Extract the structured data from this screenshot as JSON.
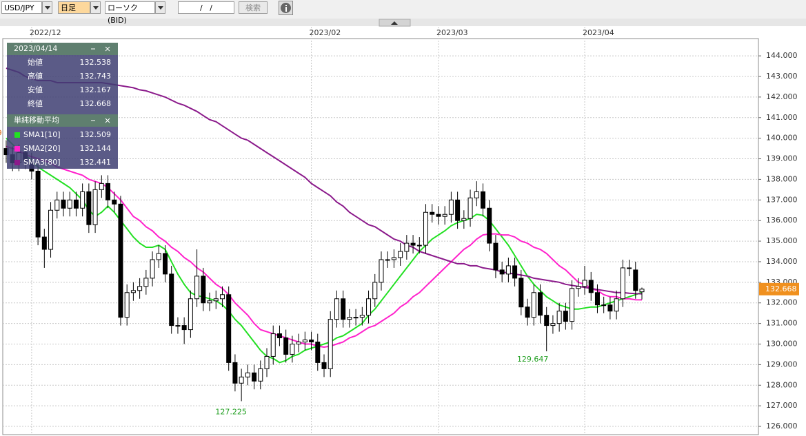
{
  "toolbar": {
    "pair": "USD/JPY",
    "period": "日足",
    "chart_kind": "ローソク(BID)",
    "date_field": "/   /",
    "search": "検索"
  },
  "chart_data": {
    "type": "candlestick",
    "categories": [
      null,
      null,
      null,
      null,
      "2022/12",
      null,
      null,
      null,
      null,
      null,
      null,
      null,
      null,
      null,
      null,
      null,
      null,
      null,
      null,
      null,
      null,
      null,
      null,
      null,
      null,
      null,
      null,
      null,
      null,
      null,
      null,
      null,
      null,
      null,
      null,
      null,
      null,
      null,
      null,
      null,
      null,
      null,
      null,
      null,
      null,
      null,
      null,
      null,
      "2023/02",
      null,
      null,
      null,
      null,
      null,
      null,
      null,
      null,
      null,
      null,
      null,
      null,
      null,
      null,
      null,
      null,
      null,
      null,
      null,
      "2023/03",
      null,
      null,
      null,
      null,
      null,
      null,
      null,
      null,
      null,
      null,
      null,
      null,
      null,
      null,
      null,
      null,
      null,
      null,
      null,
      null,
      null,
      null,
      "2023/04",
      null,
      null,
      null,
      null,
      null,
      null,
      null,
      null,
      null
    ],
    "open": [
      139.5,
      139.2,
      138.8,
      139.3,
      138.9,
      138.4,
      135.2,
      134.6,
      136.5,
      137.0,
      136.6,
      137.0,
      136.6,
      137.4,
      135.8,
      137.5,
      137.8,
      137.0,
      136.8,
      131.3,
      132.5,
      132.6,
      132.8,
      133.2,
      134.1,
      134.4,
      133.4,
      130.9,
      130.9,
      130.7,
      132.2,
      133.3,
      132.0,
      132.1,
      132.2,
      132.4,
      129.1,
      128.1,
      128.4,
      128.6,
      128.2,
      128.8,
      129.4,
      130.5,
      130.3,
      129.5,
      130.0,
      130.1,
      130.2,
      130.1,
      129.1,
      128.8,
      131.2,
      132.2,
      131.2,
      131.3,
      131.3,
      131.4,
      132.2,
      133.0,
      134.1,
      134.1,
      134.2,
      134.5,
      134.9,
      134.8,
      134.8,
      136.4,
      136.3,
      136.2,
      136.3,
      137.0,
      136.0,
      136.1,
      137.1,
      137.4,
      136.6,
      134.9,
      133.6,
      133.4,
      133.8,
      133.2,
      131.8,
      131.3,
      132.5,
      131.4,
      130.9,
      131.0,
      131.6,
      131.1,
      132.7,
      132.8,
      133.1,
      132.5,
      131.9,
      131.9,
      131.6,
      132.2,
      133.7,
      133.6,
      132.538
    ],
    "high": [
      139.9,
      139.6,
      139.7,
      139.7,
      139.3,
      138.8,
      135.6,
      136.9,
      137.4,
      137.4,
      137.4,
      137.4,
      137.8,
      137.8,
      137.9,
      138.2,
      138.2,
      137.4,
      137.2,
      132.9,
      133.0,
      133.2,
      133.6,
      134.5,
      134.8,
      134.8,
      133.8,
      131.3,
      131.3,
      132.6,
      134.6,
      133.7,
      132.5,
      132.6,
      132.8,
      132.8,
      129.5,
      128.8,
      129.0,
      129.0,
      129.2,
      129.8,
      130.9,
      130.9,
      130.7,
      130.4,
      130.5,
      130.6,
      130.6,
      130.5,
      129.5,
      131.6,
      132.6,
      132.6,
      131.7,
      131.7,
      131.8,
      132.6,
      133.4,
      134.5,
      134.5,
      134.6,
      134.9,
      135.3,
      135.3,
      135.2,
      136.8,
      136.8,
      136.7,
      136.7,
      137.4,
      137.4,
      136.5,
      137.5,
      137.909,
      137.8,
      137.0,
      135.3,
      134.0,
      134.2,
      134.2,
      133.6,
      132.2,
      132.9,
      132.9,
      131.8,
      131.4,
      132.0,
      132.0,
      133.1,
      133.2,
      133.8,
      133.5,
      132.9,
      132.3,
      132.3,
      132.6,
      134.1,
      134.1,
      134.0,
      132.743
    ],
    "low": [
      138.8,
      138.4,
      138.4,
      138.5,
      138.0,
      134.8,
      133.7,
      134.2,
      136.1,
      136.2,
      136.2,
      136.2,
      136.2,
      135.4,
      135.4,
      137.1,
      136.6,
      136.4,
      130.9,
      130.9,
      132.1,
      132.2,
      132.4,
      132.8,
      133.7,
      133.0,
      130.5,
      130.5,
      130.0,
      130.3,
      131.8,
      131.6,
      131.6,
      131.7,
      131.8,
      128.7,
      127.7,
      127.225,
      128.0,
      127.8,
      127.8,
      128.4,
      129.0,
      129.9,
      129.1,
      129.1,
      129.6,
      129.7,
      129.7,
      128.7,
      128.4,
      128.4,
      130.8,
      130.8,
      130.8,
      130.9,
      130.9,
      131.0,
      131.8,
      132.6,
      133.7,
      133.7,
      133.8,
      134.1,
      134.4,
      134.4,
      134.4,
      135.9,
      135.8,
      135.8,
      135.9,
      135.6,
      135.6,
      135.7,
      136.7,
      136.2,
      134.5,
      133.2,
      133.0,
      133.0,
      132.8,
      131.4,
      130.9,
      130.9,
      131.0,
      129.647,
      130.5,
      130.6,
      130.7,
      130.7,
      132.3,
      132.4,
      132.1,
      131.5,
      131.5,
      131.2,
      131.2,
      131.8,
      133.3,
      132.2,
      132.167
    ],
    "close": [
      139.2,
      138.8,
      139.3,
      138.9,
      138.4,
      135.2,
      134.6,
      136.5,
      137.0,
      136.6,
      137.0,
      136.6,
      137.4,
      135.8,
      137.5,
      137.8,
      137.0,
      136.8,
      131.3,
      132.5,
      132.6,
      132.8,
      133.2,
      134.1,
      134.4,
      133.4,
      130.9,
      130.9,
      130.7,
      132.2,
      133.3,
      132.0,
      132.1,
      132.2,
      132.4,
      129.1,
      128.1,
      128.4,
      128.6,
      128.2,
      128.8,
      129.4,
      130.5,
      130.3,
      129.5,
      130.0,
      130.1,
      130.2,
      130.1,
      129.1,
      128.8,
      131.2,
      132.2,
      131.2,
      131.3,
      131.3,
      131.4,
      132.2,
      133.0,
      134.1,
      134.1,
      134.2,
      134.5,
      134.9,
      134.8,
      134.8,
      136.4,
      136.3,
      136.2,
      136.3,
      137.0,
      136.0,
      136.1,
      137.1,
      137.4,
      136.6,
      134.9,
      133.6,
      133.4,
      133.8,
      133.2,
      131.8,
      131.3,
      132.5,
      131.4,
      130.9,
      131.0,
      131.6,
      131.1,
      132.7,
      132.8,
      133.1,
      132.5,
      131.9,
      131.9,
      131.6,
      132.2,
      133.7,
      133.7,
      132.6,
      132.668
    ],
    "up_color": "#ffffff",
    "down_color": "#000000",
    "series": [
      {
        "name": "SMA1[10]",
        "color": "#22e022",
        "values": [
          140.0,
          139.7,
          139.4,
          139.2,
          138.9,
          138.6,
          138.4,
          138.2,
          138.0,
          137.8,
          137.6,
          137.3,
          137.0,
          136.5,
          136.2,
          136.4,
          136.7,
          136.4,
          136.0,
          135.6,
          135.2,
          134.9,
          134.7,
          134.7,
          134.8,
          134.6,
          134.0,
          133.4,
          132.9,
          132.5,
          132.35,
          132.3,
          132.2,
          132.1,
          131.9,
          131.6,
          131.2,
          130.9,
          130.5,
          130.1,
          129.7,
          129.4,
          129.3,
          129.1,
          129.2,
          129.4,
          129.5,
          129.7,
          129.8,
          129.9,
          130.0,
          130.1,
          130.3,
          130.4,
          130.6,
          130.8,
          131.0,
          131.4,
          131.7,
          132.1,
          132.5,
          132.9,
          133.3,
          133.7,
          134.1,
          134.5,
          134.8,
          135.1,
          135.3,
          135.5,
          135.75,
          135.9,
          136.0,
          136.1,
          136.3,
          136.25,
          136.0,
          135.6,
          135.2,
          134.8,
          134.3,
          133.8,
          133.3,
          132.9,
          132.6,
          132.3,
          132.1,
          131.9,
          131.8,
          131.7,
          131.7,
          131.75,
          131.8,
          131.8,
          131.9,
          132.0,
          132.1,
          132.2,
          132.3,
          132.4,
          132.509
        ]
      },
      {
        "name": "SMA2[20]",
        "color": "#ff22cc",
        "values": [
          139.6,
          139.5,
          139.4,
          139.2,
          139.1,
          139.0,
          138.9,
          138.8,
          138.6,
          138.5,
          138.4,
          138.3,
          138.2,
          138.0,
          137.9,
          137.8,
          137.6,
          137.3,
          137.0,
          136.6,
          136.2,
          136.0,
          135.7,
          135.5,
          135.2,
          135.0,
          134.7,
          134.5,
          134.2,
          134.0,
          133.7,
          133.5,
          133.2,
          132.9,
          132.7,
          132.4,
          132.0,
          131.7,
          131.4,
          131.0,
          130.7,
          130.6,
          130.5,
          130.4,
          130.3,
          130.2,
          130.1,
          130.0,
          130.0,
          129.9,
          129.85,
          129.9,
          130.0,
          130.1,
          130.3,
          130.4,
          130.6,
          130.8,
          130.9,
          131.1,
          131.3,
          131.5,
          131.8,
          132.0,
          132.3,
          132.5,
          132.8,
          133.1,
          133.4,
          133.7,
          134.0,
          134.3,
          134.6,
          134.8,
          135.1,
          135.3,
          135.35,
          135.35,
          135.3,
          135.3,
          135.2,
          135.0,
          134.9,
          134.7,
          134.6,
          134.4,
          134.1,
          133.8,
          133.6,
          133.3,
          133.0,
          132.9,
          132.7,
          132.6,
          132.4,
          132.3,
          132.3,
          132.2,
          132.2,
          132.15,
          132.144
        ]
      },
      {
        "name": "SMA3[80]",
        "color": "#8b1a8b",
        "values": [
          143.4,
          143.3,
          143.2,
          143.0,
          142.9,
          142.8,
          142.8,
          142.8,
          142.7,
          142.7,
          142.7,
          142.7,
          142.7,
          142.7,
          142.7,
          142.7,
          142.65,
          142.6,
          142.55,
          142.5,
          142.45,
          142.35,
          142.3,
          142.2,
          142.1,
          142.0,
          141.85,
          141.7,
          141.6,
          141.45,
          141.3,
          141.1,
          140.9,
          140.8,
          140.6,
          140.4,
          140.2,
          140.0,
          139.9,
          139.7,
          139.5,
          139.3,
          139.1,
          138.9,
          138.7,
          138.5,
          138.3,
          138.1,
          137.8,
          137.6,
          137.4,
          137.2,
          136.9,
          136.7,
          136.4,
          136.2,
          136.0,
          135.8,
          135.7,
          135.5,
          135.3,
          135.1,
          135.0,
          134.8,
          134.7,
          134.5,
          134.4,
          134.3,
          134.2,
          134.1,
          134.0,
          133.9,
          133.9,
          133.8,
          133.8,
          133.7,
          133.65,
          133.6,
          133.5,
          133.45,
          133.4,
          133.35,
          133.3,
          133.2,
          133.15,
          133.1,
          133.05,
          133.0,
          132.9,
          132.85,
          132.8,
          132.75,
          132.7,
          132.65,
          132.6,
          132.55,
          132.5,
          132.5,
          132.47,
          132.45,
          132.441
        ]
      }
    ],
    "ylim": [
      125.6,
      144.84
    ],
    "yticks": [
      {
        "value": 126,
        "label": "126.000"
      },
      {
        "value": 127,
        "label": "127.000"
      },
      {
        "value": 128,
        "label": "128.000"
      },
      {
        "value": 129,
        "label": "129.000"
      },
      {
        "value": 130,
        "label": "130.000"
      },
      {
        "value": 131,
        "label": "131.000"
      },
      {
        "value": 132,
        "label": "132.000"
      },
      {
        "value": 133,
        "label": "133.000"
      },
      {
        "value": 134,
        "label": "134.000"
      },
      {
        "value": 135,
        "label": "135.000"
      },
      {
        "value": 136,
        "label": "136.000"
      },
      {
        "value": 137,
        "label": "137.000"
      },
      {
        "value": 138,
        "label": "138.000"
      },
      {
        "value": 139,
        "label": "139.000"
      },
      {
        "value": 140,
        "label": "140.000"
      },
      {
        "value": 141,
        "label": "141.000"
      },
      {
        "value": 142,
        "label": "142.000"
      },
      {
        "value": 143,
        "label": "143.000"
      },
      {
        "value": 144,
        "label": "144.000"
      }
    ],
    "grid": true,
    "info_panel": {
      "date": "2023/04/14",
      "open_label": "始値",
      "high_label": "高値",
      "low_label": "安値",
      "close_label": "終値",
      "sma_title": "単純移動平均"
    }
  }
}
